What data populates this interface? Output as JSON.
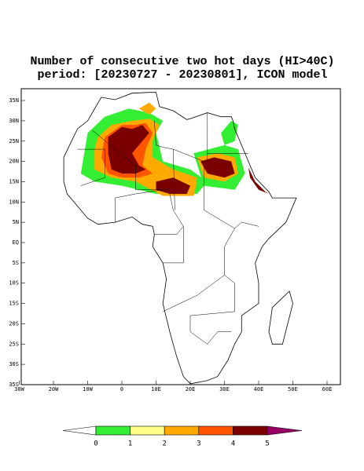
{
  "header": {
    "title": "Number of consecutive two hot days (HI>40C)",
    "subtitle": "period: [20230727 - 20230801], ICON model"
  },
  "map": {
    "lon_ticks": [
      {
        "value": -30,
        "label": "30W"
      },
      {
        "value": -20,
        "label": "20W"
      },
      {
        "value": -10,
        "label": "10W"
      },
      0,
      {
        "value": 10,
        "label": "10E"
      },
      {
        "value": 20,
        "label": "20E"
      },
      {
        "value": 30,
        "label": "30E"
      },
      {
        "value": 40,
        "label": "40E"
      },
      {
        "value": 50,
        "label": "50E"
      },
      {
        "value": 60,
        "label": "60E"
      }
    ],
    "lat_ticks": [
      {
        "value": 35,
        "label": "35N"
      },
      {
        "value": 30,
        "label": "30N"
      },
      {
        "value": 25,
        "label": "25N"
      },
      {
        "value": 20,
        "label": "20N"
      },
      {
        "value": 15,
        "label": "15N"
      },
      {
        "value": 10,
        "label": "10N"
      },
      {
        "value": 5,
        "label": "5N"
      },
      {
        "value": 0,
        "label": "EQ"
      },
      {
        "value": -5,
        "label": "5S"
      },
      {
        "value": -10,
        "label": "10S"
      },
      {
        "value": -15,
        "label": "15S"
      },
      {
        "value": -20,
        "label": "20S"
      },
      {
        "value": -25,
        "label": "25S"
      },
      {
        "value": -30,
        "label": "30S"
      },
      {
        "value": -35,
        "label": "35S"
      }
    ]
  },
  "colorbar": {
    "levels": [
      0,
      1,
      2,
      3,
      4,
      5
    ],
    "colors": [
      "#ffffff",
      "#33ee33",
      "#ffff88",
      "#ffaa00",
      "#ff5500",
      "#7a0000",
      "#990066"
    ]
  }
}
